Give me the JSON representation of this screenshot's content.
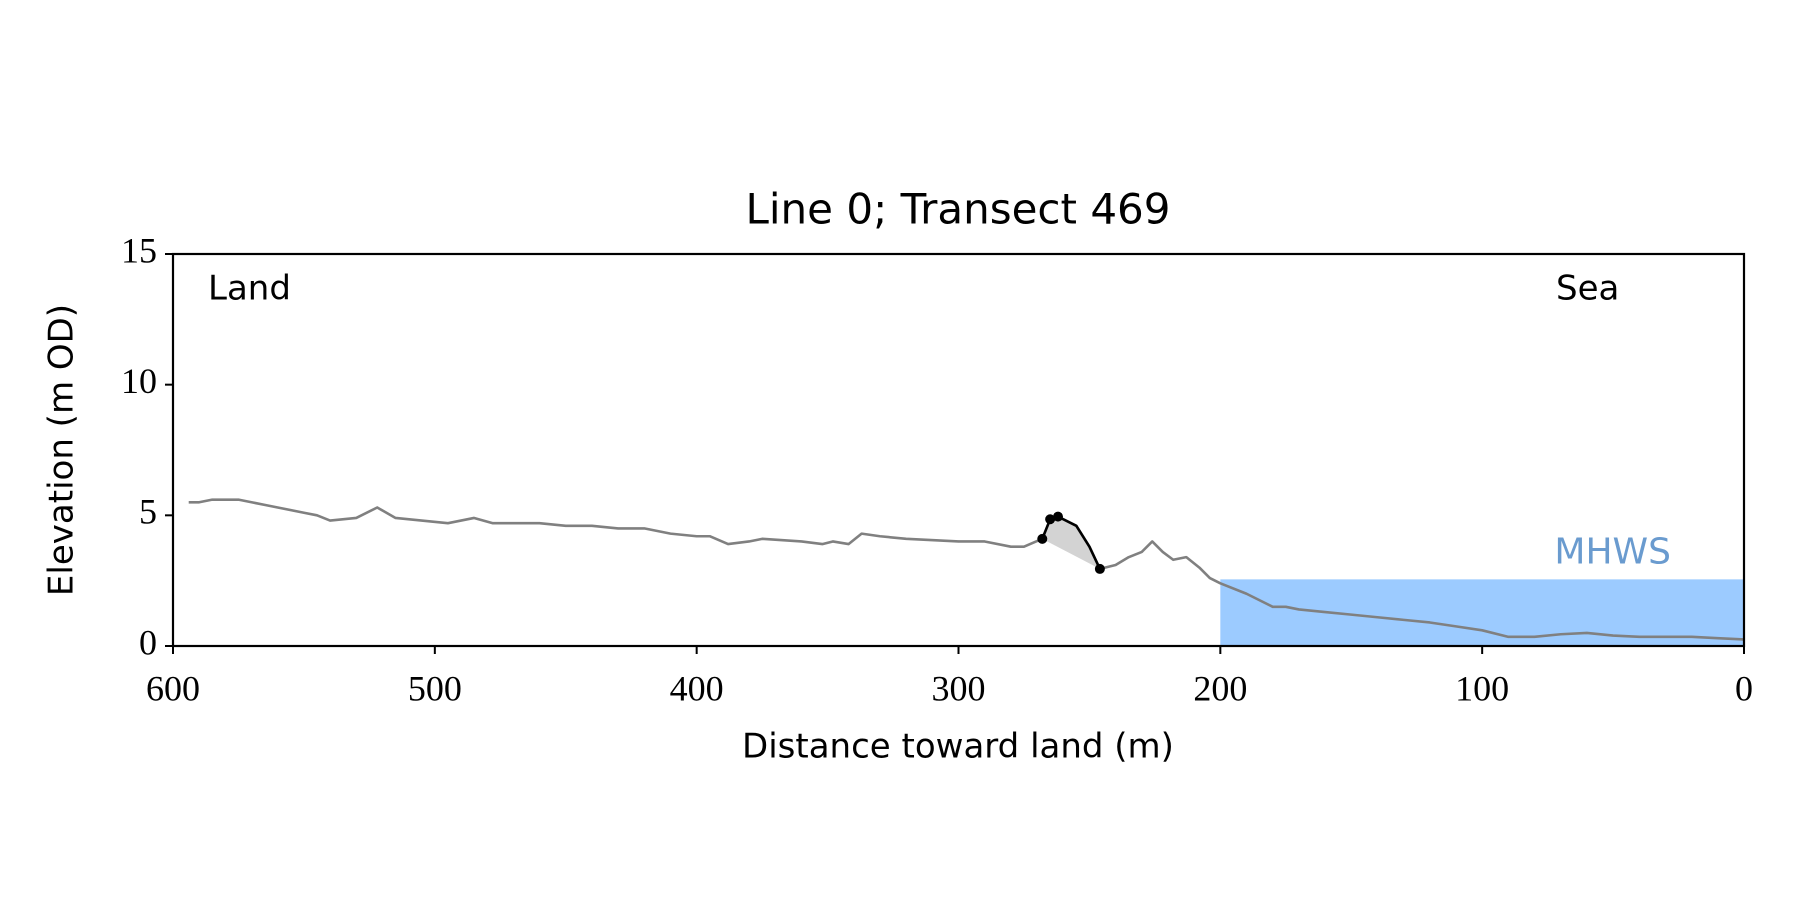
{
  "chart_data": {
    "type": "line",
    "title": "Line 0; Transect 469",
    "x_label": "Distance toward land (m)",
    "y_label": "Elevation (m OD)",
    "annotations": [
      "Land",
      "Sea"
    ],
    "xlim": [
      600,
      0
    ],
    "xticks": [
      600,
      500,
      400,
      300,
      200,
      100,
      0
    ],
    "ylim": [
      0,
      15
    ],
    "yticks": [
      0,
      5,
      10,
      15
    ],
    "mhws": {
      "label": "MHWS",
      "value": 2.55,
      "x": [
        200,
        0
      ],
      "color": "#9ccbff",
      "label_color": "#6a9bcf"
    },
    "series": [
      {
        "color": "#808080",
        "x": [
          594,
          590,
          585,
          580,
          575,
          570,
          565,
          560,
          550,
          545,
          540,
          530,
          522,
          515,
          505,
          495,
          485,
          478,
          460,
          450,
          440,
          430,
          420,
          410,
          400,
          395,
          388,
          380,
          375,
          360,
          352,
          348,
          342,
          337,
          330,
          320,
          300,
          290,
          280,
          275,
          268,
          265,
          262,
          255,
          250,
          246,
          240,
          235,
          230,
          226,
          222,
          218,
          213,
          208,
          204,
          200,
          190,
          180,
          175,
          170,
          160,
          150,
          140,
          130,
          120,
          110,
          100,
          90,
          80,
          70,
          60,
          50,
          40,
          30,
          20,
          10,
          0
        ],
        "values": [
          5.5,
          5.5,
          5.6,
          5.6,
          5.6,
          5.5,
          5.4,
          5.3,
          5.1,
          5.0,
          4.8,
          4.9,
          5.3,
          4.9,
          4.8,
          4.7,
          4.9,
          4.7,
          4.7,
          4.6,
          4.6,
          4.5,
          4.5,
          4.3,
          4.2,
          4.2,
          3.9,
          4.0,
          4.1,
          4.0,
          3.9,
          4.0,
          3.9,
          4.3,
          4.2,
          4.1,
          4.0,
          4.0,
          3.8,
          3.8,
          4.1,
          4.8,
          4.95,
          4.6,
          3.8,
          2.95,
          3.1,
          3.4,
          3.6,
          4.0,
          3.6,
          3.3,
          3.4,
          3.0,
          2.6,
          2.4,
          2.0,
          1.5,
          1.5,
          1.4,
          1.3,
          1.2,
          1.1,
          1.0,
          0.9,
          0.75,
          0.6,
          0.35,
          0.35,
          0.45,
          0.5,
          0.4,
          0.35,
          0.35,
          0.35,
          0.3,
          0.25
        ]
      },
      {
        "color": "#000000",
        "fill_color": "#d3d3d3",
        "x": [
          268,
          265,
          262,
          255,
          250,
          246
        ],
        "values": [
          4.1,
          4.85,
          4.95,
          4.6,
          3.8,
          2.95
        ]
      },
      {
        "color": "#000000",
        "markers": true,
        "x": [
          268,
          265,
          262,
          246
        ],
        "values": [
          4.1,
          4.85,
          4.95,
          2.95
        ]
      }
    ]
  }
}
